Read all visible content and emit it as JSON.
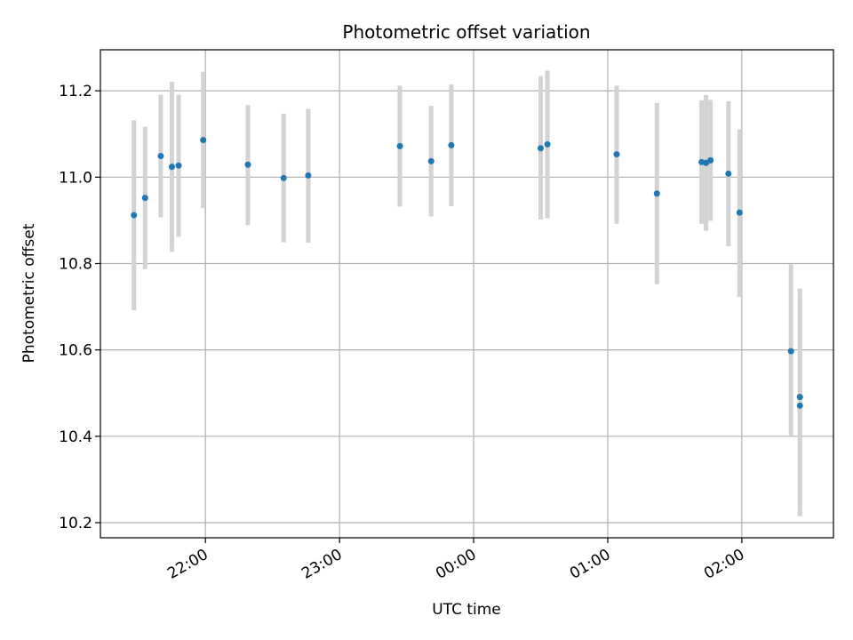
{
  "chart_data": {
    "type": "scatter",
    "title": "Photometric offset variation",
    "xlabel": "UTC time",
    "ylabel": "Photometric offset",
    "x_ticks": [
      "22:00",
      "23:00",
      "00:00",
      "01:00",
      "02:00"
    ],
    "y_ticks": [
      "10.2",
      "10.4",
      "10.6",
      "10.8",
      "11.0",
      "11.2"
    ],
    "y_tick_values": [
      10.2,
      10.4,
      10.6,
      10.8,
      11.0,
      11.2
    ],
    "xlim": [
      "21:13",
      "02:41"
    ],
    "ylim": [
      10.165,
      11.295
    ],
    "grid": true,
    "point_color": "#1f77b4",
    "errorbar_color": "#d3d3d3",
    "points": [
      {
        "t": "21:28",
        "y": 10.912,
        "lo": 10.692,
        "hi": 11.132
      },
      {
        "t": "21:33",
        "y": 10.952,
        "lo": 10.787,
        "hi": 11.117
      },
      {
        "t": "21:40",
        "y": 11.049,
        "lo": 10.907,
        "hi": 11.191
      },
      {
        "t": "21:45",
        "y": 11.024,
        "lo": 10.827,
        "hi": 11.221
      },
      {
        "t": "21:48",
        "y": 11.027,
        "lo": 10.862,
        "hi": 11.191
      },
      {
        "t": "21:59",
        "y": 11.086,
        "lo": 10.928,
        "hi": 11.244
      },
      {
        "t": "22:19",
        "y": 11.029,
        "lo": 10.889,
        "hi": 11.167
      },
      {
        "t": "22:35",
        "y": 10.998,
        "lo": 10.849,
        "hi": 11.147
      },
      {
        "t": "22:46",
        "y": 11.004,
        "lo": 10.848,
        "hi": 11.158
      },
      {
        "t": "23:27",
        "y": 11.072,
        "lo": 10.932,
        "hi": 11.212
      },
      {
        "t": "23:41",
        "y": 11.037,
        "lo": 10.909,
        "hi": 11.165
      },
      {
        "t": "23:50",
        "y": 11.074,
        "lo": 10.933,
        "hi": 11.215
      },
      {
        "t": "00:30",
        "y": 11.067,
        "lo": 10.902,
        "hi": 11.234
      },
      {
        "t": "00:33",
        "y": 11.076,
        "lo": 10.905,
        "hi": 11.247
      },
      {
        "t": "01:04",
        "y": 11.053,
        "lo": 10.892,
        "hi": 11.212
      },
      {
        "t": "01:22",
        "y": 10.962,
        "lo": 10.752,
        "hi": 11.172
      },
      {
        "t": "01:42",
        "y": 11.035,
        "lo": 10.892,
        "hi": 11.178
      },
      {
        "t": "01:44",
        "y": 11.033,
        "lo": 10.876,
        "hi": 11.19
      },
      {
        "t": "01:46",
        "y": 11.039,
        "lo": 10.899,
        "hi": 11.179
      },
      {
        "t": "01:54",
        "y": 11.008,
        "lo": 10.84,
        "hi": 11.176
      },
      {
        "t": "01:59",
        "y": 10.918,
        "lo": 10.723,
        "hi": 11.111
      },
      {
        "t": "02:22",
        "y": 10.597,
        "lo": 10.402,
        "hi": 10.798
      },
      {
        "t": "02:26",
        "y": 10.471,
        "lo": 10.215,
        "hi": 10.725
      },
      {
        "t": "02:26",
        "y": 10.491,
        "lo": 10.24,
        "hi": 10.742
      }
    ]
  }
}
